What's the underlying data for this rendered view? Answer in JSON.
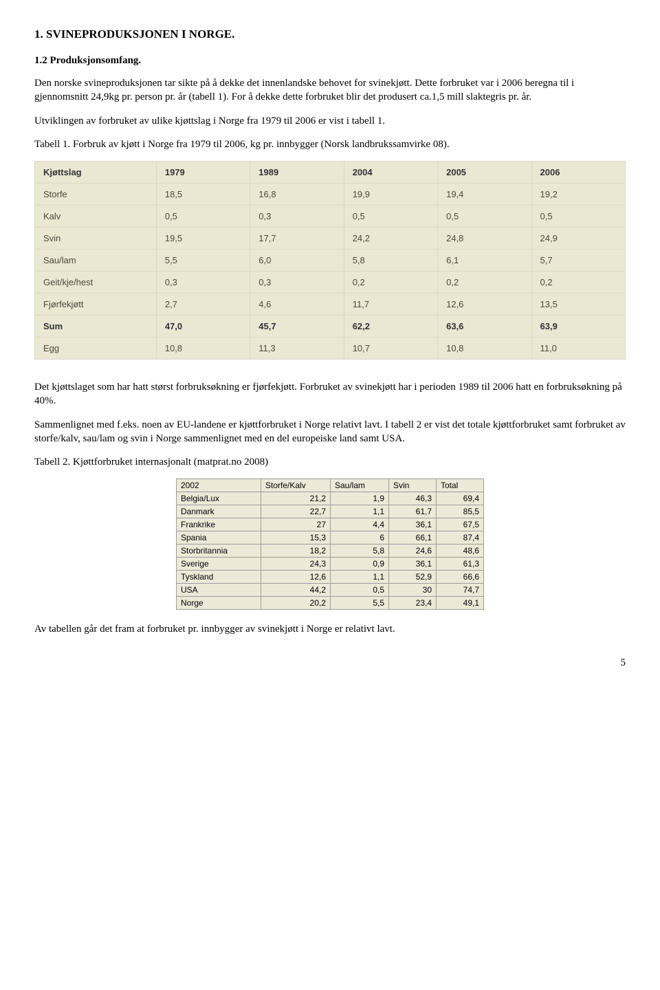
{
  "heading1": "1. SVINEPRODUKSJONEN I NORGE.",
  "heading2": "1.2 Produksjonsomfang.",
  "para1": "Den norske svineproduksjonen tar sikte på å dekke det innenlandske behovet for svinekjøtt. Dette forbruket var i 2006 beregna til i gjennomsnitt 24,9kg pr. person pr. år (tabell 1). For å dekke dette forbruket blir det produsert ca.1,5 mill slaktegris pr. år.",
  "para2": "Utviklingen av forbruket av ulike kjøttslag i Norge fra 1979 til 2006 er vist i tabell 1.",
  "tab1caption": "Tabell 1. Forbruk av kjøtt i Norge fra 1979 til 2006, kg pr. innbygger (Norsk landbrukssamvirke 08).",
  "table1": {
    "headers": [
      "Kjøttslag",
      "1979",
      "1989",
      "2004",
      "2005",
      "2006"
    ],
    "rows": [
      {
        "label": "Storfe",
        "vals": [
          "18,5",
          "16,8",
          "19,9",
          "19,4",
          "19,2"
        ],
        "sum": false
      },
      {
        "label": "Kalv",
        "vals": [
          "0,5",
          "0,3",
          "0,5",
          "0,5",
          "0,5"
        ],
        "sum": false
      },
      {
        "label": "Svin",
        "vals": [
          "19,5",
          "17,7",
          "24,2",
          "24,8",
          "24,9"
        ],
        "sum": false
      },
      {
        "label": "Sau/lam",
        "vals": [
          "5,5",
          "6,0",
          "5,8",
          "6,1",
          "5,7"
        ],
        "sum": false
      },
      {
        "label": "Geit/kje/hest",
        "vals": [
          "0,3",
          "0,3",
          "0,2",
          "0,2",
          "0,2"
        ],
        "sum": false
      },
      {
        "label": "Fjørfekjøtt",
        "vals": [
          "2,7",
          "4,6",
          "11,7",
          "12,6",
          "13,5"
        ],
        "sum": false
      },
      {
        "label": "Sum",
        "vals": [
          "47,0",
          "45,7",
          "62,2",
          "63,6",
          "63,9"
        ],
        "sum": true
      },
      {
        "label": "Egg",
        "vals": [
          "10,8",
          "11,3",
          "10,7",
          "10,8",
          "11,0"
        ],
        "sum": false
      }
    ],
    "colwidths": [
      "150px",
      "110px",
      "110px",
      "110px",
      "110px",
      "110px"
    ]
  },
  "para3": "Det kjøttslaget som har hatt størst forbruksøkning er fjørfekjøtt. Forbruket av svinekjøtt har i perioden 1989 til 2006 hatt en forbruksøkning på 40%.",
  "para4": "Sammenlignet med f.eks. noen av EU-landene er kjøttforbruket i Norge relativt lavt. I tabell 2 er vist det totale kjøttforbruket samt forbruket av storfe/kalv, sau/lam og svin i Norge sammenlignet med en del europeiske land samt USA.",
  "tab2caption": "Tabell 2. Kjøttforbruket internasjonalt (matprat.no 2008)",
  "table2": {
    "headers": [
      "2002",
      "Storfe/Kalv",
      "Sau/lam",
      "Svin",
      "Total"
    ],
    "rows": [
      {
        "label": "Belgia/Lux",
        "vals": [
          "21,2",
          "1,9",
          "46,3",
          "69,4"
        ]
      },
      {
        "label": "Danmark",
        "vals": [
          "22,7",
          "1,1",
          "61,7",
          "85,5"
        ]
      },
      {
        "label": "Frankrike",
        "vals": [
          "27",
          "4,4",
          "36,1",
          "67,5"
        ]
      },
      {
        "label": "Spania",
        "vals": [
          "15,3",
          "6",
          "66,1",
          "87,4"
        ]
      },
      {
        "label": "Storbritannia",
        "vals": [
          "18,2",
          "5,8",
          "24,6",
          "48,6"
        ]
      },
      {
        "label": "Sverige",
        "vals": [
          "24,3",
          "0,9",
          "36,1",
          "61,3"
        ]
      },
      {
        "label": "Tyskland",
        "vals": [
          "12,6",
          "1,1",
          "52,9",
          "66,6"
        ]
      },
      {
        "label": "USA",
        "vals": [
          "44,2",
          "0,5",
          "30",
          "74,7"
        ]
      },
      {
        "label": "Norge",
        "vals": [
          "20,2",
          "5,5",
          "23,4",
          "49,1"
        ]
      }
    ],
    "colwidths": [
      "110px",
      "88px",
      "72px",
      "56px",
      "56px"
    ]
  },
  "para5": "Av tabellen går det fram at forbruket pr. innbygger av svinekjøtt i Norge er relativt lavt.",
  "pagenum": "5"
}
